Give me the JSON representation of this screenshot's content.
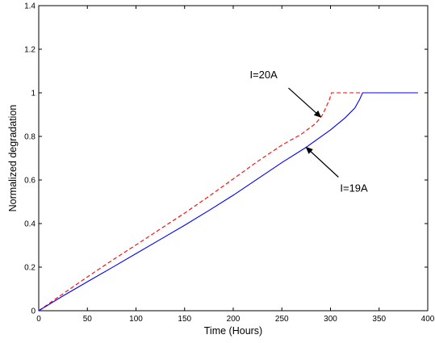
{
  "chart_data": {
    "type": "line",
    "xlabel": "Time (Hours)",
    "ylabel": "Normalized degradation",
    "xlim": [
      0,
      400
    ],
    "ylim": [
      0,
      1.4
    ],
    "xticks": [
      0,
      50,
      100,
      150,
      200,
      250,
      300,
      350,
      400
    ],
    "xtick_labels": [
      "0",
      "50",
      "100",
      "150",
      "200",
      "250",
      "300",
      "350",
      "400"
    ],
    "yticks": [
      0,
      0.2,
      0.4,
      0.6,
      0.8,
      1,
      1.2,
      1.4
    ],
    "ytick_labels": [
      "0",
      "0.2",
      "0.4",
      "0.6",
      "0.8",
      "1",
      "1.2",
      "1.4"
    ],
    "grid": false,
    "series": [
      {
        "name": "I=20A",
        "color": "#ff0000",
        "style": "dashed",
        "x": [
          0,
          25,
          50,
          75,
          100,
          125,
          150,
          175,
          200,
          225,
          250,
          270,
          285,
          292,
          296,
          299,
          301,
          340,
          390
        ],
        "y": [
          0,
          0.078,
          0.155,
          0.23,
          0.302,
          0.375,
          0.448,
          0.525,
          0.605,
          0.685,
          0.76,
          0.81,
          0.86,
          0.9,
          0.94,
          0.97,
          1.0,
          1.0,
          1.0
        ]
      },
      {
        "name": "I=19A",
        "color": "#0000ff",
        "style": "solid",
        "x": [
          0,
          25,
          50,
          75,
          100,
          125,
          150,
          175,
          200,
          225,
          250,
          275,
          300,
          315,
          325,
          330,
          333,
          360,
          390
        ],
        "y": [
          0,
          0.068,
          0.133,
          0.197,
          0.262,
          0.327,
          0.392,
          0.46,
          0.53,
          0.605,
          0.68,
          0.75,
          0.83,
          0.885,
          0.93,
          0.97,
          1.0,
          1.0,
          1.0
        ]
      }
    ],
    "annotations": [
      {
        "text": "I=20A",
        "series": 0,
        "point_x": 290
      },
      {
        "text": "I=19A",
        "series": 1,
        "point_x": 275
      }
    ]
  }
}
